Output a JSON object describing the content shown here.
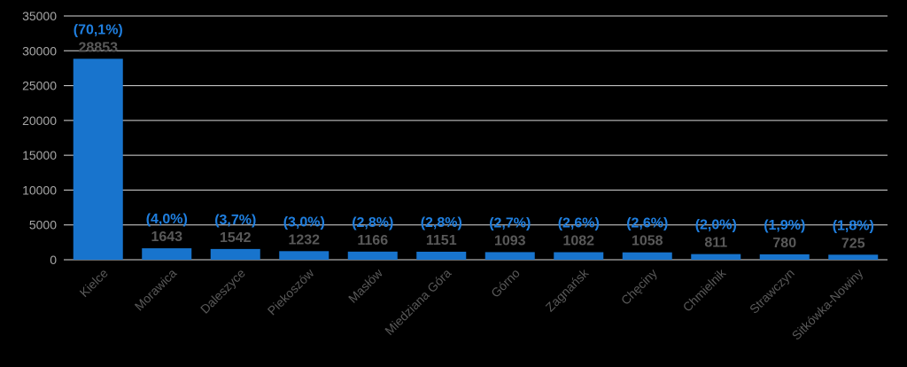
{
  "chart_data": {
    "type": "bar",
    "categories": [
      "Kielce",
      "Morawica",
      "Daleszyce",
      "Piekoszów",
      "Masłów",
      "Miedziana Góra",
      "Górno",
      "Zagnańsk",
      "Chęciny",
      "Chmielnik",
      "Strawczyn",
      "Sitkówka-Nowiny"
    ],
    "values": [
      28853,
      1643,
      1542,
      1232,
      1166,
      1151,
      1093,
      1082,
      1058,
      811,
      780,
      725
    ],
    "percent_labels": [
      "(70,1%)",
      "(4,0%)",
      "(3,7%)",
      "(3,0%)",
      "(2,8%)",
      "(2,8%)",
      "(2,7%)",
      "(2,6%)",
      "(2,6%)",
      "(2,0%)",
      "(1,9%)",
      "(1,8%)"
    ],
    "value_labels": [
      "28853",
      "1643",
      "1542",
      "1232",
      "1166",
      "1151",
      "1093",
      "1082",
      "1058",
      "811",
      "780",
      "725"
    ],
    "y_ticks": [
      "0",
      "5000",
      "10000",
      "15000",
      "20000",
      "25000",
      "30000",
      "35000"
    ],
    "ylim": [
      0,
      35000
    ],
    "title": "",
    "xlabel": "",
    "ylabel": "",
    "grid": true,
    "legend": "none",
    "colors": {
      "bar": "#1874cd",
      "percent_label": "#1f7fe0",
      "value_label": "#595959",
      "grid": "#d9d9d9",
      "tick_label": "#a6a6a6"
    }
  }
}
